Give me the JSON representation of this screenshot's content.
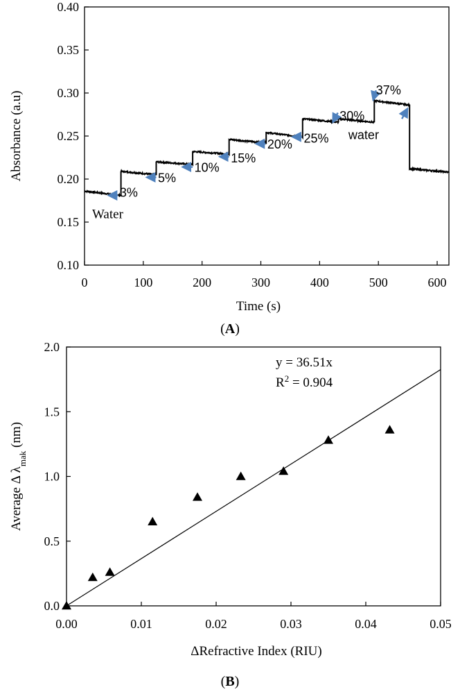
{
  "chart_data": [
    {
      "type": "line",
      "panel_label": "(A)",
      "xlabel": "Time (s)",
      "ylabel": "Absorbance (a.u)",
      "xlim": [
        0,
        620
      ],
      "ylim": [
        0.1,
        0.4
      ],
      "x_ticks": [
        "0",
        "100",
        "200",
        "300",
        "400",
        "500",
        "600"
      ],
      "x_tick_values": [
        0,
        100,
        200,
        300,
        400,
        500,
        600
      ],
      "y_ticks": [
        "0.10",
        "0.15",
        "0.20",
        "0.25",
        "0.30",
        "0.35",
        "0.40"
      ],
      "y_tick_values": [
        0.1,
        0.15,
        0.2,
        0.25,
        0.3,
        0.35,
        0.4
      ],
      "series": [
        {
          "name": "Absorbance",
          "color": "#000000",
          "segments": [
            {
              "x0": 0,
              "x1": 62,
              "y0": 0.186,
              "y1": 0.181
            },
            {
              "x0": 62,
              "x1": 122,
              "y0": 0.209,
              "y1": 0.205
            },
            {
              "x0": 122,
              "x1": 184,
              "y0": 0.22,
              "y1": 0.217
            },
            {
              "x0": 184,
              "x1": 246,
              "y0": 0.232,
              "y1": 0.229
            },
            {
              "x0": 246,
              "x1": 309,
              "y0": 0.246,
              "y1": 0.242
            },
            {
              "x0": 309,
              "x1": 371,
              "y0": 0.254,
              "y1": 0.249
            },
            {
              "x0": 371,
              "x1": 432,
              "y0": 0.27,
              "y1": 0.266
            },
            {
              "x0": 432,
              "x1": 493,
              "y0": 0.27,
              "y1": 0.266
            },
            {
              "x0": 493,
              "x1": 553,
              "y0": 0.291,
              "y1": 0.286
            },
            {
              "x0": 553,
              "x1": 620,
              "y0": 0.212,
              "y1": 0.208
            }
          ]
        }
      ],
      "annotations": [
        {
          "text": "Water",
          "x": 13,
          "y": 0.16,
          "font": "serif"
        },
        {
          "text": "3%",
          "x": 60,
          "y": 0.185,
          "arrow_x": 57,
          "arrow_y": 0.181,
          "arrow_tip_x": 44,
          "arrow_tip_y": 0.181
        },
        {
          "text": "5%",
          "x": 125,
          "y": 0.202,
          "arrow_x": 122,
          "arrow_y": 0.202,
          "arrow_tip_x": 109,
          "arrow_tip_y": 0.202
        },
        {
          "text": "10%",
          "x": 187,
          "y": 0.214,
          "arrow_x": 184,
          "arrow_y": 0.214,
          "arrow_tip_x": 170,
          "arrow_tip_y": 0.214
        },
        {
          "text": "15%",
          "x": 249,
          "y": 0.225,
          "arrow_x": 246,
          "arrow_y": 0.226,
          "arrow_tip_x": 233,
          "arrow_tip_y": 0.226
        },
        {
          "text": "20%",
          "x": 311,
          "y": 0.241,
          "arrow_x": 308,
          "arrow_y": 0.241,
          "arrow_tip_x": 295,
          "arrow_tip_y": 0.241
        },
        {
          "text": "25%",
          "x": 373,
          "y": 0.248,
          "arrow_x": 370,
          "arrow_y": 0.249,
          "arrow_tip_x": 357,
          "arrow_tip_y": 0.249
        },
        {
          "text": "30%",
          "x": 434,
          "y": 0.274,
          "arrow_x": 431,
          "arrow_y": 0.277,
          "arrow_tip_x": 424,
          "arrow_tip_y": 0.268
        },
        {
          "text": "37%",
          "x": 496,
          "y": 0.304,
          "arrow_x": 496,
          "arrow_y": 0.303,
          "arrow_tip_x": 492,
          "arrow_tip_y": 0.294
        },
        {
          "text": "water",
          "x": 449,
          "y": 0.252,
          "arrow_x": 540,
          "arrow_y": 0.27,
          "arrow_tip_x": 548,
          "arrow_tip_y": 0.28
        }
      ],
      "arrow_color": "#4f81bd"
    },
    {
      "type": "scatter",
      "panel_label": "(B)",
      "xlabel": "ΔRefractive Index (RIU)",
      "ylabel_main": "Average Δ λ",
      "ylabel_sub": "mak",
      "ylabel_tail": " (nm)",
      "xlim": [
        0,
        0.05
      ],
      "ylim": [
        0,
        2.0
      ],
      "x_ticks": [
        "0.00",
        "0.01",
        "0.02",
        "0.03",
        "0.04",
        "0.05"
      ],
      "x_tick_values": [
        0,
        0.01,
        0.02,
        0.03,
        0.04,
        0.05
      ],
      "y_ticks": [
        "0.0",
        "0.5",
        "1.0",
        "1.5",
        "2.0"
      ],
      "y_tick_values": [
        0,
        0.5,
        1.0,
        1.5,
        2.0
      ],
      "points": [
        {
          "x": 0.0,
          "y": 0.0
        },
        {
          "x": 0.0035,
          "y": 0.22
        },
        {
          "x": 0.0058,
          "y": 0.26
        },
        {
          "x": 0.0115,
          "y": 0.65
        },
        {
          "x": 0.0175,
          "y": 0.84
        },
        {
          "x": 0.0233,
          "y": 1.0
        },
        {
          "x": 0.029,
          "y": 1.04
        },
        {
          "x": 0.035,
          "y": 1.28
        },
        {
          "x": 0.0432,
          "y": 1.36
        }
      ],
      "fit": {
        "slope": 36.51,
        "intercept": 0
      },
      "equation": "y = 36.51x",
      "r2_prefix": "R",
      "r2_sup": "2",
      "r2_suffix": " = 0.904",
      "marker": "triangle",
      "color": "#000000"
    }
  ]
}
